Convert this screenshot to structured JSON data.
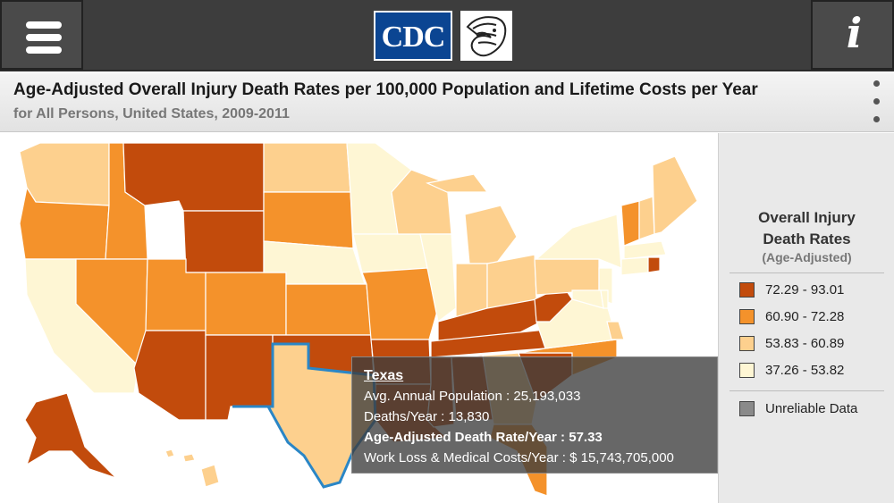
{
  "header": {
    "cdc_logo_text": "CDC",
    "menu_icon": "hamburger-menu-icon",
    "info_icon": "info-icon"
  },
  "titlebar": {
    "title": "Age-Adjusted Overall Injury Death Rates per 100,000 Population and Lifetime Costs per Year",
    "subtitle": "for All Persons, United States, 2009-2011",
    "more_icon": "vertical-ellipsis-icon"
  },
  "legend": {
    "title_line1": "Overall Injury",
    "title_line2": "Death Rates",
    "title_line3": "(Age-Adjusted)",
    "items": [
      {
        "label": "72.29 - 93.01",
        "color": "#c24b0c"
      },
      {
        "label": "60.90 - 72.28",
        "color": "#f4922b"
      },
      {
        "label": "53.83 - 60.89",
        "color": "#fdd08e"
      },
      {
        "label": "37.26 - 53.82",
        "color": "#fef6d4"
      }
    ],
    "unreliable": {
      "label": "Unreliable Data",
      "color": "#8a8a8a"
    }
  },
  "tooltip": {
    "state": "Texas",
    "population_label": "Avg. Annual Population :",
    "population_value": "25,193,033",
    "deaths_label": "Deaths/Year :",
    "deaths_value": "13,830",
    "rate_label": "Age-Adjusted Death Rate/Year :",
    "rate_value": "57.33",
    "cost_label": "Work Loss & Medical Costs/Year :",
    "cost_value": "$ 15,743,705,000"
  },
  "map": {
    "selected_state": "Texas",
    "selected_outline_color": "#2a86c6",
    "class_colors": {
      "high": "#c24b0c",
      "mid_high": "#f4922b",
      "mid_low": "#fdd08e",
      "low": "#fef6d4"
    }
  }
}
